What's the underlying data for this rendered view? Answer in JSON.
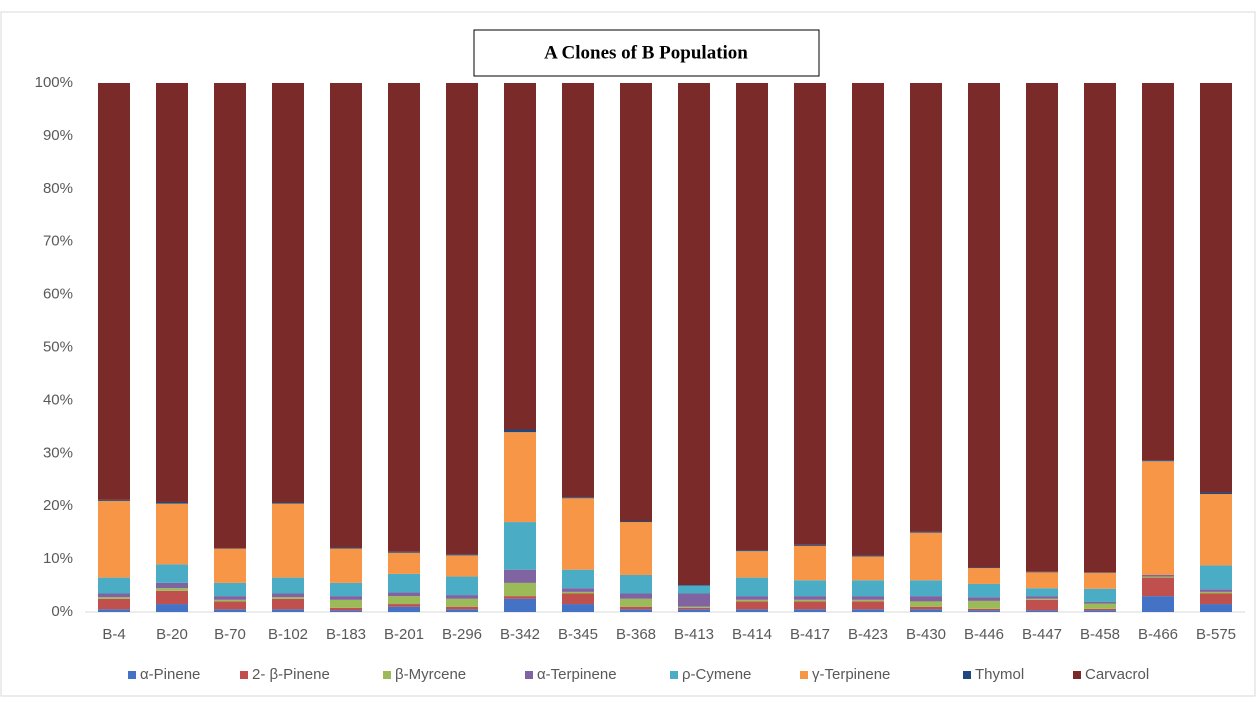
{
  "chart_data": {
    "type": "bar",
    "stacked": true,
    "title": "A Clones of B Population",
    "categories": [
      "B-4",
      "B-20",
      "B-70",
      "B-102",
      "B-183",
      "B-201",
      "B-296",
      "B-342",
      "B-345",
      "B-368",
      "B-413",
      "B-414",
      "B-417",
      "B-423",
      "B-430",
      "B-446",
      "B-447",
      "B-458",
      "B-466",
      "B-575"
    ],
    "series": [
      {
        "name": "α-Pinene",
        "color": "#4472c4",
        "values": [
          0.5,
          1.5,
          0.5,
          0.5,
          0.3,
          1,
          0.5,
          2.5,
          1.5,
          0.5,
          0.5,
          0.5,
          0.5,
          0.5,
          0.5,
          0.3,
          0.3,
          0.3,
          3,
          1.5
        ]
      },
      {
        "name": "2- β-Pinene",
        "color": "#c0504d",
        "values": [
          2,
          2.5,
          1.5,
          2,
          0.5,
          0.5,
          0.5,
          0.5,
          2,
          0.5,
          0.3,
          1.5,
          1.5,
          1.5,
          0.5,
          0.3,
          2,
          0.3,
          3.5,
          2
        ]
      },
      {
        "name": "β-Myrcene",
        "color": "#9bbb59",
        "values": [
          0.3,
          0.5,
          0.3,
          0.3,
          1.5,
          1.5,
          1.5,
          2.5,
          0.3,
          1.5,
          0.2,
          0.3,
          0.3,
          0.3,
          1,
          1.5,
          0.2,
          1,
          0.2,
          0.3
        ]
      },
      {
        "name": "α-Terpinene",
        "color": "#8064a2",
        "values": [
          0.7,
          1,
          0.7,
          0.7,
          0.7,
          0.7,
          0.7,
          2.5,
          0.7,
          1,
          2.5,
          0.7,
          0.7,
          0.7,
          1,
          0.7,
          0.5,
          0.3,
          0.3,
          0.5
        ]
      },
      {
        "name": "ρ-Cymene",
        "color": "#4bacc6",
        "values": [
          3,
          3.5,
          2.5,
          3,
          2.5,
          3.5,
          3.5,
          9,
          3.5,
          3.5,
          1.5,
          3.5,
          3,
          3,
          3,
          2.5,
          1.5,
          2.5,
          0,
          4.5
        ]
      },
      {
        "name": "γ-Terpinene",
        "color": "#f79646",
        "values": [
          14.5,
          11.5,
          6.5,
          14,
          6.5,
          4,
          4,
          17,
          13.5,
          10,
          0,
          5,
          6.5,
          4.5,
          9,
          3,
          3,
          3,
          21.5,
          13.5
        ]
      },
      {
        "name": "Thymol",
        "color": "#1f497d",
        "values": [
          0.2,
          0.3,
          0.1,
          0.2,
          0.2,
          0.2,
          0.2,
          0.5,
          0.2,
          0.2,
          0.1,
          0.2,
          0.2,
          0.2,
          0.2,
          0.1,
          0.1,
          0.1,
          0.2,
          0.3
        ]
      },
      {
        "name": "Carvacrol",
        "color": "#7b2a2a",
        "values": [
          78.8,
          79.2,
          87.9,
          79.3,
          87.8,
          88.6,
          89.1,
          65.5,
          78.3,
          82.8,
          94.9,
          88.3,
          87.3,
          89.3,
          84.8,
          91.6,
          92.4,
          92.5,
          71.3,
          77.4
        ]
      }
    ],
    "ylim": [
      0,
      100
    ],
    "yticks": [
      {
        "value": 0,
        "label": "0%"
      },
      {
        "value": 10,
        "label": "10%"
      },
      {
        "value": 20,
        "label": "20%"
      },
      {
        "value": 30,
        "label": "30%"
      },
      {
        "value": 40,
        "label": "40%"
      },
      {
        "value": 50,
        "label": "50%"
      },
      {
        "value": 60,
        "label": "60%"
      },
      {
        "value": 70,
        "label": "70%"
      },
      {
        "value": 80,
        "label": "80%"
      },
      {
        "value": 90,
        "label": "90%"
      },
      {
        "value": 100,
        "label": "100%"
      }
    ],
    "grid": false,
    "legend": "bottom"
  }
}
